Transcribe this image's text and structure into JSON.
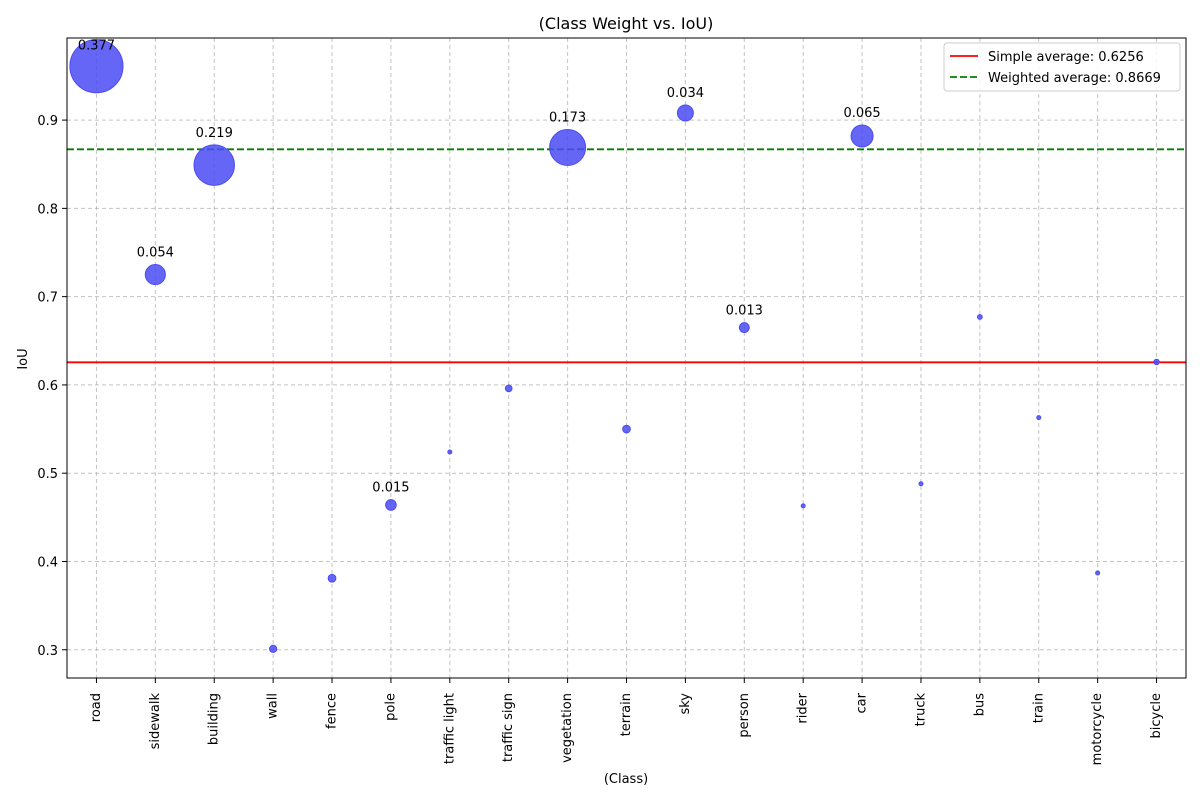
{
  "chart_data": {
    "type": "scatter",
    "title": "(Class Weight vs. IoU)",
    "xlabel": "(Class)",
    "ylabel": "IoU",
    "categories": [
      "road",
      "sidewalk",
      "building",
      "wall",
      "fence",
      "pole",
      "traffic light",
      "traffic sign",
      "vegetation",
      "terrain",
      "sky",
      "person",
      "rider",
      "car",
      "truck",
      "bus",
      "train",
      "motorcycle",
      "bicycle"
    ],
    "series": [
      {
        "values": [
          0.961,
          0.725,
          0.849,
          0.301,
          0.381,
          0.464,
          0.524,
          0.596,
          0.869,
          0.55,
          0.908,
          0.665,
          0.463,
          0.882,
          0.488,
          0.677,
          0.563,
          0.387,
          0.626
        ],
        "weights": [
          0.377,
          0.054,
          0.219,
          0.007,
          0.008,
          0.015,
          0.002,
          0.006,
          0.173,
          0.008,
          0.034,
          0.013,
          0.002,
          0.065,
          0.002,
          0.003,
          0.001,
          0.0007,
          0.004
        ],
        "color": "#4b4bf5"
      }
    ],
    "weight_labels": [
      {
        "index": 0,
        "text": "0.377"
      },
      {
        "index": 1,
        "text": "0.054"
      },
      {
        "index": 2,
        "text": "0.219"
      },
      {
        "index": 5,
        "text": "0.015"
      },
      {
        "index": 8,
        "text": "0.173"
      },
      {
        "index": 10,
        "text": "0.034"
      },
      {
        "index": 11,
        "text": "0.013"
      },
      {
        "index": 13,
        "text": "0.065"
      }
    ],
    "reference_lines": [
      {
        "name": "Simple average: 0.6256",
        "value": 0.6256,
        "color": "#ff0000",
        "style": "solid"
      },
      {
        "name": "Weighted average: 0.8669",
        "value": 0.8669,
        "color": "#008000",
        "style": "dashed"
      }
    ],
    "ylim": [
      0.268,
      0.993
    ],
    "yticks": [
      0.3,
      0.4,
      0.5,
      0.6,
      0.7,
      0.8,
      0.9
    ],
    "grid": true,
    "legend_position": "top-right"
  }
}
